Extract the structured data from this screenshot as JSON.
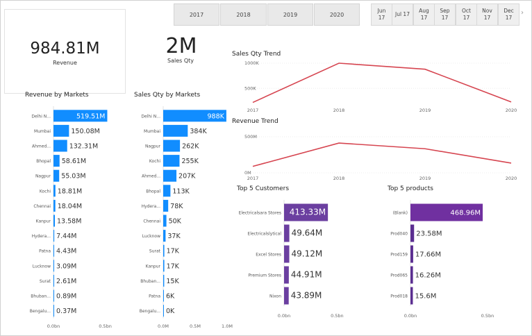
{
  "year_slicer": [
    "2017",
    "2018",
    "2019",
    "2020"
  ],
  "month_slicer": [
    {
      "m": "Jun",
      "y": "17"
    },
    {
      "m": "Jul 17",
      "y": ""
    },
    {
      "m": "Aug",
      "y": "17"
    },
    {
      "m": "Sep",
      "y": "17"
    },
    {
      "m": "Oct",
      "y": "17"
    },
    {
      "m": "Nov",
      "y": "17"
    },
    {
      "m": "Dec",
      "y": "17"
    }
  ],
  "month_chevron": "›",
  "kpi_revenue": {
    "value": "984.81M",
    "label": "Revenue"
  },
  "kpi_sales_qty": {
    "value": "2M",
    "label": "Sales Qty"
  },
  "colors": {
    "bar_blue": "#118dff",
    "bar_purple_dark": "#5b2e91",
    "bar_purple_light": "#7030a0",
    "bar_purple_customer": "#6b3fa0",
    "line_red": "#d64550",
    "axis_grey": "#c8c8c8"
  },
  "chart_data": [
    {
      "type": "bar",
      "title": "Revenue by Markets",
      "orientation": "horizontal",
      "categories": [
        "Delhi N...",
        "Mumbai",
        "Ahmed...",
        "Bhopal",
        "Nagpur",
        "Kochi",
        "Chennai",
        "Kanpur",
        "Hydera...",
        "Patna",
        "Lucknow",
        "Surat",
        "Bhuban...",
        "Bengalu..."
      ],
      "values": [
        519.51,
        150.08,
        132.31,
        58.61,
        55.03,
        18.81,
        18.04,
        13.58,
        7.44,
        4.43,
        3.09,
        2.61,
        0.89,
        0.37
      ],
      "data_labels": [
        "519.51M",
        "150.08M",
        "132.31M",
        "58.61M",
        "55.03M",
        "18.81M",
        "18.04M",
        "13.58M",
        "7.44M",
        "4.43M",
        "3.09M",
        "2.61M",
        "0.89M",
        "0.37M"
      ],
      "value_unit": "M",
      "xlim": [
        0,
        550
      ],
      "x_ticks": [
        {
          "value": 0,
          "label": "0.0bn"
        },
        {
          "value": 500,
          "label": "0.5bn"
        }
      ]
    },
    {
      "type": "bar",
      "title": "Sales Qty by Markets",
      "orientation": "horizontal",
      "categories": [
        "Delhi N...",
        "Mumbai",
        "Nagpur",
        "Kochi",
        "Ahmed...",
        "Bhopal",
        "Hydera...",
        "Chennai",
        "Lucknow",
        "Surat",
        "Kanpur",
        "Bhuban...",
        "Patna",
        "Bengalu..."
      ],
      "values": [
        988,
        384,
        262,
        255,
        207,
        113,
        78,
        50,
        37,
        17,
        17,
        15,
        6,
        0
      ],
      "data_labels": [
        "988K",
        "384K",
        "262K",
        "255K",
        "207K",
        "113K",
        "78K",
        "50K",
        "37K",
        "17K",
        "17K",
        "15K",
        "6K",
        "0K"
      ],
      "value_unit": "K",
      "xlim": [
        0,
        1000
      ],
      "x_ticks": [
        {
          "value": 0,
          "label": "0.0M"
        },
        {
          "value": 500,
          "label": "0.5M"
        },
        {
          "value": 1000,
          "label": "1.0M"
        }
      ]
    },
    {
      "type": "line",
      "title": "Sales Qty Trend",
      "x": [
        "2017",
        "2018",
        "2019",
        "2020"
      ],
      "series": [
        {
          "values": [
            220,
            1000,
            880,
            230
          ]
        }
      ],
      "value_unit": "K",
      "ylim": [
        200,
        1000
      ],
      "y_ticks": [
        {
          "value": 500,
          "label": "500K"
        },
        {
          "value": 1000,
          "label": "1000K"
        }
      ]
    },
    {
      "type": "line",
      "title": "Revenue Trend",
      "x": [
        "2017",
        "2018",
        "2019",
        "2020"
      ],
      "series": [
        {
          "values": [
            90,
            413,
            334,
            135
          ]
        }
      ],
      "value_unit": "M",
      "ylim": [
        0,
        500
      ],
      "y_ticks": [
        {
          "value": 0,
          "label": "0M"
        },
        {
          "value": 500,
          "label": "500M"
        }
      ]
    },
    {
      "type": "bar",
      "title": "Top 5 Customers",
      "orientation": "horizontal",
      "categories": [
        "Electricalsara Stores",
        "Electricalslytical",
        "Excel Stores",
        "Premium Stores",
        "Nixon"
      ],
      "values": [
        413.33,
        49.64,
        49.12,
        44.91,
        43.89
      ],
      "data_labels": [
        "413.33M",
        "49.64M",
        "49.12M",
        "44.91M",
        "43.89M"
      ],
      "value_unit": "M",
      "xlim": [
        0,
        550
      ],
      "x_ticks": [
        {
          "value": 0,
          "label": "0.0bn"
        },
        {
          "value": 500,
          "label": "0.5bn"
        }
      ]
    },
    {
      "type": "bar",
      "title": "Top 5 products",
      "orientation": "horizontal",
      "categories": [
        "(Blank)",
        "Prod040",
        "Prod159",
        "Prod065",
        "Prod018"
      ],
      "values": [
        468.96,
        23.58,
        17.66,
        16.26,
        15.6
      ],
      "data_labels": [
        "468.96M",
        "23.58M",
        "17.66M",
        "16.26M",
        "15.6M"
      ],
      "value_unit": "M",
      "xlim": [
        0,
        550
      ],
      "x_ticks": [
        {
          "value": 0,
          "label": "0.0bn"
        },
        {
          "value": 500,
          "label": "0.5bn"
        }
      ]
    }
  ]
}
